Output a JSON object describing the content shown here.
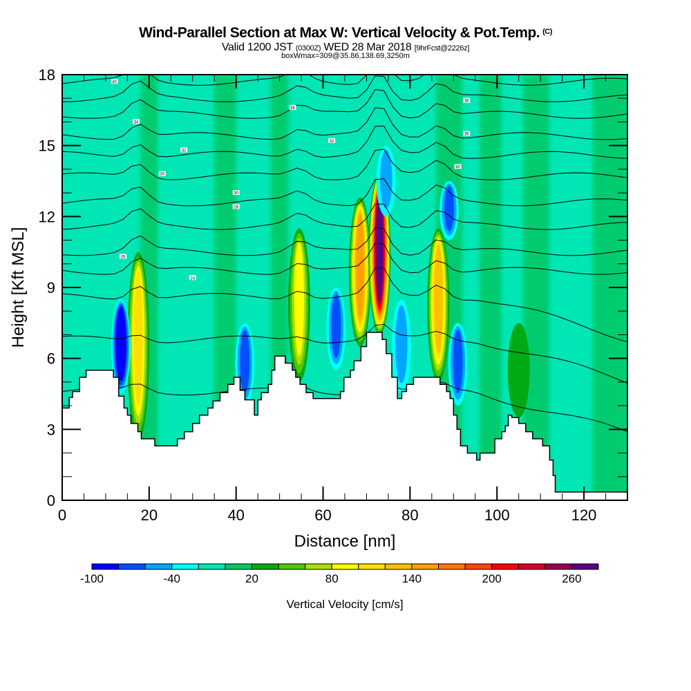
{
  "header": {
    "title": "Wind-Parallel Section at Max W: Vertical Velocity & Pot.Temp.",
    "copyright": "(C)",
    "valid_prefix": "Valid 1200 JST",
    "valid_utc": "(0300Z)",
    "valid_date": "WED 28 Mar 2018",
    "forecast": "[9hrFcst@2226z]",
    "box_info": "boxWmax=309@35.86,138.69,3250m"
  },
  "chart_data": {
    "type": "heatmap",
    "title": "Wind-Parallel Section at Max W: Vertical Velocity & Pot.Temp.",
    "xlabel": "Distance [nm]",
    "ylabel": "Height [Kft MSL]",
    "xlim": [
      0,
      130
    ],
    "ylim": [
      0,
      18
    ],
    "x_ticks": [
      0,
      20,
      40,
      60,
      80,
      100,
      120
    ],
    "x_minor_step": 5,
    "y_ticks": [
      0,
      3,
      6,
      9,
      12,
      15,
      18
    ],
    "y_minor_step": 1,
    "grid": false,
    "colorbar": {
      "title": "Vertical Velocity [cm/s]",
      "location": "bottom",
      "levels": [
        -100,
        -80,
        -60,
        -40,
        -20,
        0,
        20,
        40,
        60,
        80,
        100,
        120,
        140,
        160,
        180,
        200,
        220,
        240,
        260,
        280
      ],
      "tick_labels": [
        -100,
        -40,
        20,
        80,
        140,
        200,
        260
      ],
      "colors": [
        "#0000ff",
        "#0050ff",
        "#00a6ff",
        "#00ffff",
        "#00e6b4",
        "#00c864",
        "#00aa14",
        "#50c800",
        "#aae000",
        "#ffff00",
        "#ffe000",
        "#ffc000",
        "#ffa000",
        "#ff7800",
        "#ff4600",
        "#ff0000",
        "#d2002d",
        "#960050",
        "#5a0082"
      ]
    },
    "background_value_range": [
      0,
      20
    ],
    "features": [
      {
        "kind": "updraft",
        "x": 17.5,
        "y_bottom": 2.5,
        "y_top": 10.5,
        "peak_w": 120
      },
      {
        "kind": "downdraft",
        "x": 13.5,
        "y_bottom": 4.5,
        "y_top": 8.5,
        "peak_w": -100
      },
      {
        "kind": "updraft",
        "x": 54.5,
        "y_bottom": 5.0,
        "y_top": 11.5,
        "peak_w": 100
      },
      {
        "kind": "downdraft",
        "x": 42,
        "y_bottom": 4.0,
        "y_top": 7.5,
        "peak_w": -60
      },
      {
        "kind": "downdraft",
        "x": 63,
        "y_bottom": 5.5,
        "y_top": 9.0,
        "peak_w": -60
      },
      {
        "kind": "updraft",
        "x": 68.5,
        "y_bottom": 6.5,
        "y_top": 12.8,
        "peak_w": 160
      },
      {
        "kind": "updraft",
        "x": 73,
        "y_bottom": 7.0,
        "y_top": 13.8,
        "peak_w": 280
      },
      {
        "kind": "downdraft",
        "x": 74.5,
        "y_bottom": 12.0,
        "y_top": 15.0,
        "peak_w": -40
      },
      {
        "kind": "downdraft",
        "x": 78,
        "y_bottom": 4.5,
        "y_top": 8.5,
        "peak_w": -40
      },
      {
        "kind": "updraft",
        "x": 86.5,
        "y_bottom": 5.0,
        "y_top": 11.5,
        "peak_w": 140
      },
      {
        "kind": "downdraft",
        "x": 89,
        "y_bottom": 11.0,
        "y_top": 13.5,
        "peak_w": -60
      },
      {
        "kind": "downdraft",
        "x": 91,
        "y_bottom": 4.0,
        "y_top": 7.5,
        "peak_w": -60
      },
      {
        "kind": "updraft",
        "x": 105,
        "y_bottom": 3.5,
        "y_top": 7.5,
        "peak_w": 40
      }
    ],
    "terrain": {
      "x": [
        0,
        1.6,
        2.4,
        4,
        5.5,
        7.6,
        11.1,
        11.8,
        13,
        14.2,
        15,
        15.8,
        17.4,
        18.2,
        21.3,
        24.5,
        26.5,
        28.1,
        30,
        31.6,
        33.5,
        34.7,
        36.3,
        38.1,
        39.5,
        40.9,
        42,
        44.2,
        45,
        45.8,
        47.4,
        48.2,
        48.9,
        50.5,
        51.3,
        52.9,
        53.7,
        54.7,
        56.1,
        57.7,
        63.2,
        64,
        64.8,
        66.3,
        67.1,
        68.7,
        70,
        73.1,
        73.6,
        74.5,
        75.8,
        77.1,
        78.1,
        79.2,
        80.8,
        86.1,
        86.9,
        88.4,
        89.2,
        90,
        90.8,
        91.6,
        93.2,
        94.8,
        95.3,
        96.1,
        97.9,
        99.5,
        101.1,
        101.9,
        102.6,
        103.4,
        105,
        106.6,
        108.2,
        110.5,
        112.1,
        112.9,
        113.4,
        130
      ],
      "height_kft": [
        3.9,
        4.35,
        4.6,
        5.2,
        5.5,
        5.5,
        5.5,
        5.2,
        4.4,
        3.9,
        3.6,
        3.25,
        2.9,
        2.6,
        2.3,
        2.3,
        2.6,
        2.9,
        3.25,
        3.6,
        3.9,
        4.2,
        4.55,
        4.9,
        5.2,
        4.65,
        4.25,
        3.6,
        4.25,
        4.55,
        4.9,
        5.5,
        6.1,
        6.1,
        5.8,
        5.5,
        5.2,
        4.9,
        4.55,
        4.3,
        4.3,
        4.6,
        5.2,
        5.5,
        5.9,
        6.5,
        7.1,
        7.1,
        6.8,
        6.2,
        5.2,
        4.3,
        4.6,
        4.9,
        5.2,
        5.2,
        4.9,
        4.6,
        4.3,
        3.6,
        3.0,
        2.3,
        2.0,
        2.0,
        1.7,
        2.0,
        2.0,
        2.6,
        2.9,
        3.15,
        3.6,
        3.5,
        3.25,
        2.9,
        2.6,
        2.3,
        1.7,
        1.05,
        0.35,
        0.35
      ]
    },
    "theta_contours_kft_at_left": [
      4.6,
      6.8,
      8.6,
      9.7,
      10.5,
      11.6,
      12.6,
      13.7,
      14.6,
      15.4,
      16.3,
      17.0,
      17.7
    ],
    "contour_labels": [
      "24",
      "26",
      "28",
      "30",
      "30",
      "32",
      "32",
      "34",
      "36",
      "36",
      "38",
      "40",
      "40"
    ]
  }
}
